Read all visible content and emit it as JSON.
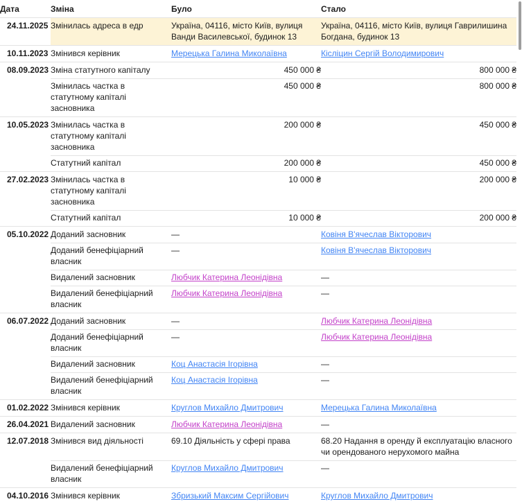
{
  "table": {
    "colors": {
      "highlight": "#fdf3d6",
      "link_blue": "#4184f4",
      "link_visited": "#c341c9",
      "border": "#e3e3e3",
      "text": "#1c1c1c"
    },
    "em_dash": "—",
    "columns": [
      {
        "key": "date",
        "label": "Дата"
      },
      {
        "key": "change",
        "label": "Зміна"
      },
      {
        "key": "before",
        "label": "Було"
      },
      {
        "key": "after",
        "label": "Стало"
      }
    ],
    "rows": [
      {
        "date": "24.11.2025",
        "change": "Змінилась адреса в едр",
        "before": {
          "type": "text",
          "value": "Україна, 04116, місто Київ, вулиця Ванди Василевської, будинок 13"
        },
        "after": {
          "type": "text",
          "value": "Україна, 04116, місто Київ, вулиця Гаврилишина Богдана, будинок 13"
        },
        "highlight": true,
        "group_start": true
      },
      {
        "date": "10.11.2023",
        "change": "Змінився керівник",
        "before": {
          "type": "link",
          "value": "Мерецька Галина Миколаївна"
        },
        "after": {
          "type": "link",
          "value": "Кісліцин Сергій Володимирович"
        },
        "group_start": true
      },
      {
        "date": "08.09.2023",
        "change": "Зміна статутного капіталу",
        "before": {
          "type": "amount",
          "value": "450 000 ₴"
        },
        "after": {
          "type": "amount",
          "value": "800 000 ₴"
        },
        "group_start": true
      },
      {
        "date": "",
        "change": "Змінилась частка в статутному капіталі засновника",
        "before": {
          "type": "amount",
          "value": "450 000 ₴"
        },
        "after": {
          "type": "amount",
          "value": "800 000 ₴"
        }
      },
      {
        "date": "10.05.2023",
        "change": "Змінилась частка в статутному капіталі засновника",
        "before": {
          "type": "amount",
          "value": "200 000 ₴"
        },
        "after": {
          "type": "amount",
          "value": "450 000 ₴"
        },
        "group_start": true
      },
      {
        "date": "",
        "change": "Статутний капітал",
        "before": {
          "type": "amount",
          "value": "200 000 ₴"
        },
        "after": {
          "type": "amount",
          "value": "450 000 ₴"
        }
      },
      {
        "date": "27.02.2023",
        "change": "Змінилась частка в статутному капіталі засновника",
        "before": {
          "type": "amount",
          "value": "10 000 ₴"
        },
        "after": {
          "type": "amount",
          "value": "200 000 ₴"
        },
        "group_start": true
      },
      {
        "date": "",
        "change": "Статутний капітал",
        "before": {
          "type": "amount",
          "value": "10 000 ₴"
        },
        "after": {
          "type": "amount",
          "value": "200 000 ₴"
        }
      },
      {
        "date": "05.10.2022",
        "change": "Доданий засновник",
        "before": {
          "type": "dash",
          "value": "—"
        },
        "after": {
          "type": "link",
          "value": "Ковіня В'ячеслав Вікторович"
        },
        "group_start": true
      },
      {
        "date": "",
        "change": "Доданий бенефіціарний власник",
        "before": {
          "type": "dash",
          "value": "—"
        },
        "after": {
          "type": "link",
          "value": "Ковіня В'ячеслав Вікторович"
        }
      },
      {
        "date": "",
        "change": "Видалений засновник",
        "before": {
          "type": "vlink",
          "value": "Любчик Катерина Леонідівна"
        },
        "after": {
          "type": "dash",
          "value": "—"
        }
      },
      {
        "date": "",
        "change": "Видалений бенефіціарний власник",
        "before": {
          "type": "vlink",
          "value": "Любчик Катерина Леонідівна"
        },
        "after": {
          "type": "dash",
          "value": "—"
        }
      },
      {
        "date": "06.07.2022",
        "change": "Доданий засновник",
        "before": {
          "type": "dash",
          "value": "—"
        },
        "after": {
          "type": "vlink",
          "value": "Любчик Катерина Леонідівна"
        },
        "group_start": true
      },
      {
        "date": "",
        "change": "Доданий бенефіціарний власник",
        "before": {
          "type": "dash",
          "value": "—"
        },
        "after": {
          "type": "vlink",
          "value": "Любчик Катерина Леонідівна"
        }
      },
      {
        "date": "",
        "change": "Видалений засновник",
        "before": {
          "type": "link",
          "value": "Коц Анастасія Ігорівна"
        },
        "after": {
          "type": "dash",
          "value": "—"
        }
      },
      {
        "date": "",
        "change": "Видалений бенефіціарний власник",
        "before": {
          "type": "link",
          "value": "Коц Анастасія Ігорівна"
        },
        "after": {
          "type": "dash",
          "value": "—"
        }
      },
      {
        "date": "01.02.2022",
        "change": "Змінився керівник",
        "before": {
          "type": "link",
          "value": "Круглов Михайло Дмитрович"
        },
        "after": {
          "type": "link",
          "value": "Мерецька Галина Миколаївна"
        },
        "group_start": true
      },
      {
        "date": "26.04.2021",
        "change": "Видалений засновник",
        "before": {
          "type": "vlink",
          "value": "Любчик Катерина Леонідівна"
        },
        "after": {
          "type": "dash",
          "value": "—"
        },
        "group_start": true
      },
      {
        "date": "12.07.2018",
        "change": "Змінився вид діяльності",
        "before": {
          "type": "text",
          "value": "69.10 Діяльність у сфері права"
        },
        "after": {
          "type": "text",
          "value": "68.20 Надання в оренду й експлуатацію власного чи орендованого нерухомого майна"
        },
        "group_start": true
      },
      {
        "date": "",
        "change": "Видалений бенефіціарний власник",
        "before": {
          "type": "link",
          "value": "Круглов Михайло Дмитрович"
        },
        "after": {
          "type": "dash",
          "value": "—"
        }
      },
      {
        "date": "04.10.2016",
        "change": "Змінився керівник",
        "before": {
          "type": "link",
          "value": "Збризький Максим Сергійович"
        },
        "after": {
          "type": "link",
          "value": "Круглов Михайло Дмитрович"
        },
        "group_start": true
      }
    ]
  }
}
